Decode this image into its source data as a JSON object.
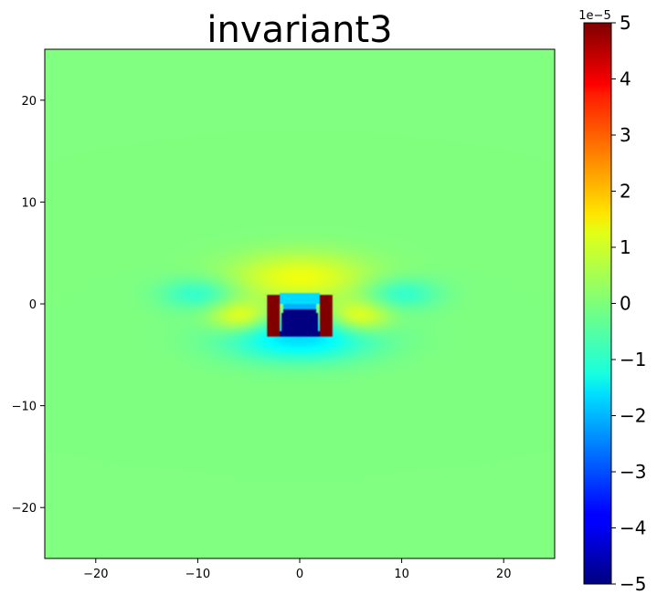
{
  "chart_data": {
    "type": "heatmap",
    "title": "invariant3",
    "xlabel": "",
    "ylabel": "",
    "xlim": [
      -25,
      25
    ],
    "ylim": [
      -25,
      25
    ],
    "xticks": [
      -20,
      -10,
      0,
      10,
      20
    ],
    "yticks": [
      20,
      10,
      0,
      -10,
      -20
    ],
    "colormap": "jet",
    "colorbar": {
      "vmin": -5,
      "vmax": 5,
      "ticks": [
        5,
        4,
        3,
        2,
        1,
        0,
        -1,
        -2,
        -3,
        -4,
        -5
      ],
      "offset_label": "1e−5",
      "scale": 1e-05
    },
    "background_value": 0.0,
    "features": [
      {
        "name": "central-negative-core",
        "x": 0,
        "y": -2.0,
        "value": -5.0
      },
      {
        "name": "upper-positive-arc",
        "x": 0,
        "y": 1.5,
        "value": 1.5
      },
      {
        "name": "left-positive-lobe",
        "x": -2.6,
        "y": -0.8,
        "value": 5.0
      },
      {
        "name": "right-positive-lobe",
        "x": 2.6,
        "y": -0.8,
        "value": 5.0
      },
      {
        "name": "left-side-negative",
        "x": -10,
        "y": 1,
        "value": -0.8
      },
      {
        "name": "right-side-negative",
        "x": 10,
        "y": 1,
        "value": -0.8
      },
      {
        "name": "left-side-positive",
        "x": -6,
        "y": -1.5,
        "value": 1.2
      },
      {
        "name": "right-side-positive",
        "x": 6,
        "y": -1.5,
        "value": 1.2
      },
      {
        "name": "lower-negative-band",
        "x": 0,
        "y": -4.5,
        "value": -1.2
      }
    ]
  }
}
